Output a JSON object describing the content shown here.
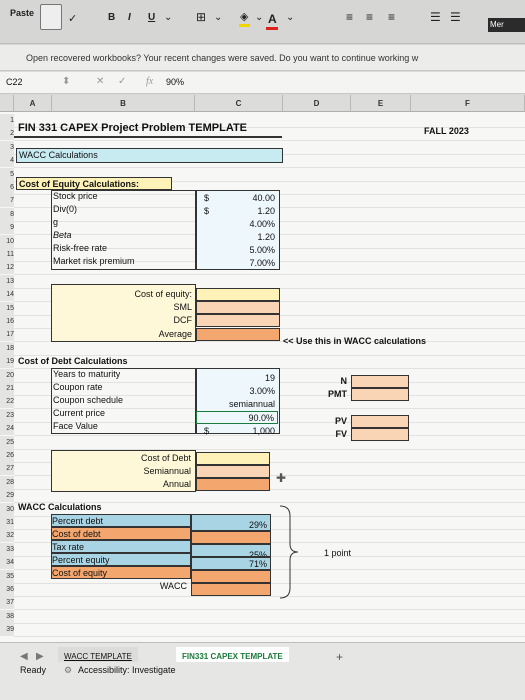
{
  "ribbon": {
    "paste": "Paste",
    "bold": "B",
    "italic": "I",
    "underline": "U",
    "font_color_letter": "A",
    "mer": "Mer"
  },
  "message_bar": {
    "text": "Open recovered workbooks?  Your recent changes were saved. Do you want to continue working w"
  },
  "formula_bar": {
    "cell_ref": "C22",
    "fx": "fx",
    "value": "90%"
  },
  "columns": [
    "A",
    "B",
    "C",
    "D",
    "E",
    "F"
  ],
  "rows": [
    "1",
    "2",
    "3",
    "4",
    "5",
    "6",
    "7",
    "8",
    "9",
    "10",
    "11",
    "12",
    "13",
    "14",
    "15",
    "16",
    "17",
    "18",
    "19",
    "20",
    "21",
    "22",
    "23",
    "24",
    "25",
    "26",
    "27",
    "28",
    "29",
    "30",
    "31",
    "32",
    "33",
    "34",
    "35",
    "36",
    "37",
    "38",
    "39"
  ],
  "sheet": {
    "title": "FIN 331 CAPEX Project Problem TEMPLATE",
    "semester": "FALL 2023",
    "wacc_header": "WACC Calculations",
    "equity_header": "Cost of Equity Calculations:",
    "equity_labels": [
      "Stock price",
      "Div(0)",
      "g",
      "Beta",
      "Risk-free rate",
      "Market risk premium"
    ],
    "equity_dollar": [
      "$",
      "$"
    ],
    "equity_values": [
      "40.00",
      "1.20",
      "4.00%",
      "1.20",
      "5.00%",
      "7.00%"
    ],
    "cost_of_equity_label": "Cost of equity:",
    "sml": "SML",
    "dcf": "DCF",
    "average": "Average",
    "use_note": "<< Use this in WACC calculations",
    "debt_header": "Cost of Debt Calculations",
    "debt_labels": [
      "Years to maturity",
      "Coupon rate",
      "Coupon schedule",
      "Current price",
      "Face Value"
    ],
    "debt_values": [
      "19",
      "3.00%",
      "semiannual",
      "90.0%",
      "1,000"
    ],
    "face_dollar": "$",
    "tvm_labels": [
      "N",
      "PMT",
      "PV",
      "FV"
    ],
    "cost_of_debt_label": "Cost of Debt",
    "semiannual": "Semiannual",
    "annual": "Annual",
    "wacc_section_header": "WACC Calculations",
    "wacc_labels": [
      "Percent debt",
      "Cost of debt",
      "Tax rate",
      "Percent equity",
      "Cost of equity"
    ],
    "wacc_values": [
      "29%",
      "25%",
      "71%"
    ],
    "wacc_label": "WACC",
    "point_note": "1 point"
  },
  "tabs": [
    "WACC TEMPLATE",
    "FIN331 CAPEX TEMPLATE"
  ],
  "add_sheet": "+",
  "status": {
    "ready": "Ready",
    "accessibility": "Accessibility: Investigate"
  }
}
